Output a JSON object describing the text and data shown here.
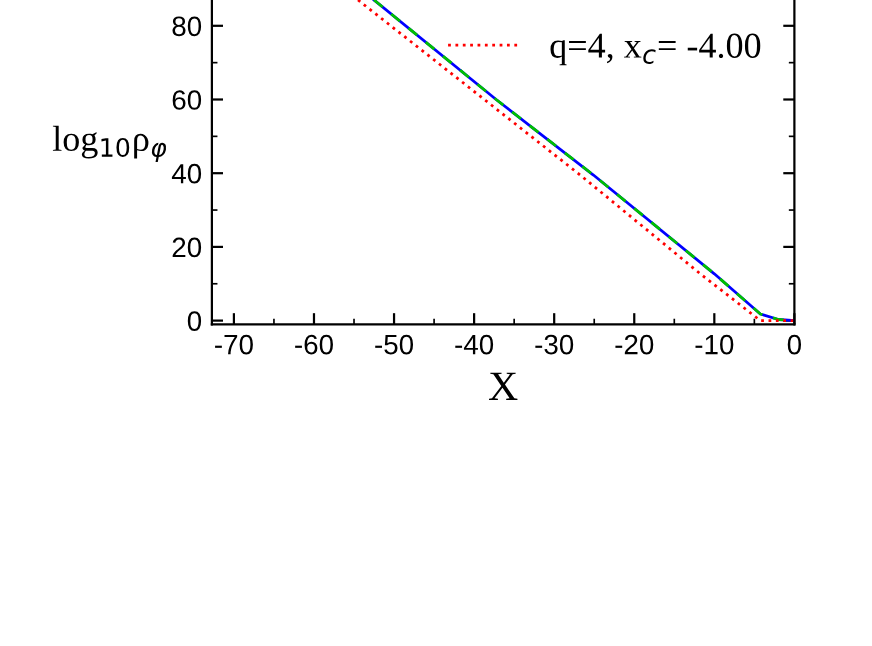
{
  "chart_data": {
    "type": "line",
    "xlabel": "X",
    "ylabel": "log$_{10}$ρ$_{φ}$",
    "xlim": [
      -72.75,
      0
    ],
    "xticks": [
      -70,
      -60,
      -50,
      -40,
      -30,
      -20,
      -10,
      0
    ],
    "ylim": [
      -1,
      87
    ],
    "yticks": [
      0,
      20,
      40,
      60,
      80
    ],
    "legend": "top right",
    "grid": false,
    "series": [
      {
        "color": "#0000ff",
        "line_style": "solid",
        "x": [
          -52.5,
          -37.25,
          -25.1,
          -10,
          -4.25,
          -2,
          0
        ],
        "values": [
          87,
          60,
          39.5,
          12.7,
          1.8,
          0.3,
          0
        ]
      },
      {
        "color": "#00c000",
        "line_style": "dashed",
        "x": [
          -52.5,
          -37.25,
          -25.1,
          -10,
          -4.25,
          -2,
          0
        ],
        "values": [
          87,
          60,
          39.5,
          12.7,
          1.8,
          0.3,
          0
        ]
      },
      {
        "name": "q=4, x$_{c}$= -4.00",
        "color": "#ff0000",
        "line_style": "dotted",
        "x": [
          -54.5,
          -26.75,
          -11.75,
          -4.25,
          0
        ],
        "values": [
          87,
          39.5,
          12.7,
          0,
          0
        ]
      }
    ]
  }
}
